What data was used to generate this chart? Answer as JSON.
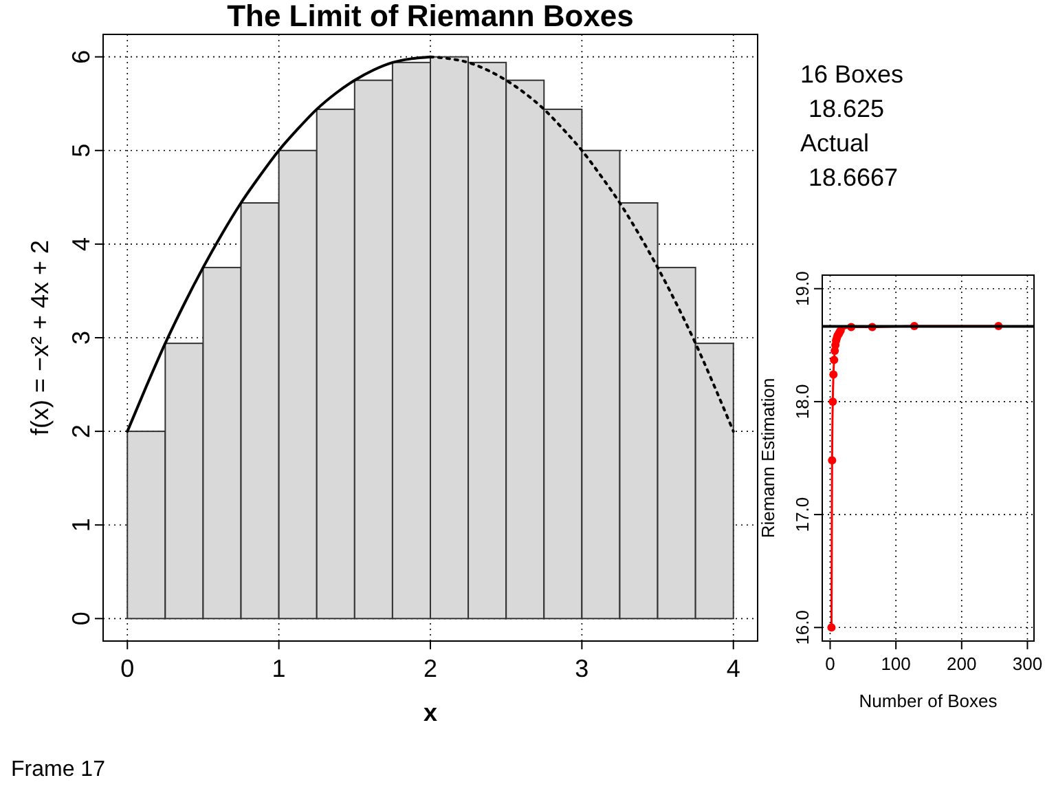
{
  "chart_data": [
    {
      "type": "histogram",
      "title": "The Limit of Riemann Boxes",
      "xlabel": "x",
      "ylabel": "f(x) = −x² + 4x + 2",
      "xlim": [
        -0.16,
        4.16
      ],
      "ylim": [
        -0.24,
        6.24
      ],
      "xticks": [
        0,
        1,
        2,
        3,
        4
      ],
      "yticks": [
        0,
        1,
        2,
        3,
        4,
        5,
        6
      ],
      "grid": true,
      "bins": [
        0,
        0.25,
        0.5,
        0.75,
        1,
        1.25,
        1.5,
        1.75,
        2,
        2.25,
        2.5,
        2.75,
        3,
        3.25,
        3.5,
        3.75,
        4
      ],
      "annotations": [
        "Frame 17"
      ],
      "series": [
        {
          "color": "#d9d9d9",
          "values": [
            2,
            2.94,
            3.75,
            4.44,
            5,
            5.44,
            5.75,
            5.94,
            6,
            5.94,
            5.75,
            5.44,
            5,
            4.44,
            3.75,
            2.94
          ]
        },
        {
          "type": "line",
          "color": "#000000",
          "line_style": "solid",
          "x": [
            0,
            0.125,
            0.25,
            0.375,
            0.5,
            0.625,
            0.75,
            0.875,
            1,
            1.125,
            1.25,
            1.375,
            1.5,
            1.625,
            1.75,
            1.875,
            2
          ],
          "values": [
            2,
            2.48,
            2.94,
            3.36,
            3.75,
            4.11,
            4.44,
            4.73,
            5,
            5.23,
            5.44,
            5.61,
            5.75,
            5.86,
            5.94,
            5.98,
            6
          ]
        },
        {
          "type": "line",
          "color": "#000000",
          "line_style": "dotted",
          "x": [
            2,
            2.125,
            2.25,
            2.375,
            2.5,
            2.625,
            2.75,
            2.875,
            3,
            3.125,
            3.25,
            3.375,
            3.5,
            3.625,
            3.75,
            3.875,
            4
          ],
          "values": [
            6,
            5.98,
            5.94,
            5.86,
            5.75,
            5.61,
            5.44,
            5.23,
            5,
            4.73,
            4.44,
            4.11,
            3.75,
            3.36,
            2.94,
            2.48,
            2
          ]
        }
      ]
    },
    {
      "type": "line",
      "xlabel": "Number of Boxes",
      "ylabel": "Riemann Estimation",
      "xlim": [
        -12,
        310
      ],
      "ylim": [
        15.88,
        19.12
      ],
      "xticks": [
        0,
        100,
        200,
        300
      ],
      "yticks": [
        {
          "value": 16,
          "label": "16.0"
        },
        {
          "value": 17,
          "label": "17.0"
        },
        {
          "value": 18,
          "label": "18.0"
        },
        {
          "value": 19,
          "label": "19.0"
        }
      ],
      "grid": true,
      "marker": "circle",
      "annotations": [
        "16 Boxes",
        "18.625",
        "Actual",
        "18.6667"
      ],
      "ref_lines": [
        {
          "axis": "y",
          "value": 18.6667,
          "color": "#000000"
        }
      ],
      "series": [
        {
          "color": "#ff0000",
          "x": [
            2,
            3,
            4,
            5,
            6,
            7,
            8,
            9,
            10,
            11,
            12,
            13,
            14,
            15,
            16,
            32,
            64,
            128,
            256
          ],
          "values": [
            16,
            17.48,
            18,
            18.24,
            18.37,
            18.45,
            18.5,
            18.54,
            18.56,
            18.58,
            18.59,
            18.6,
            18.61,
            18.62,
            18.63,
            18.66,
            18.66,
            18.67,
            18.67
          ]
        }
      ]
    }
  ]
}
